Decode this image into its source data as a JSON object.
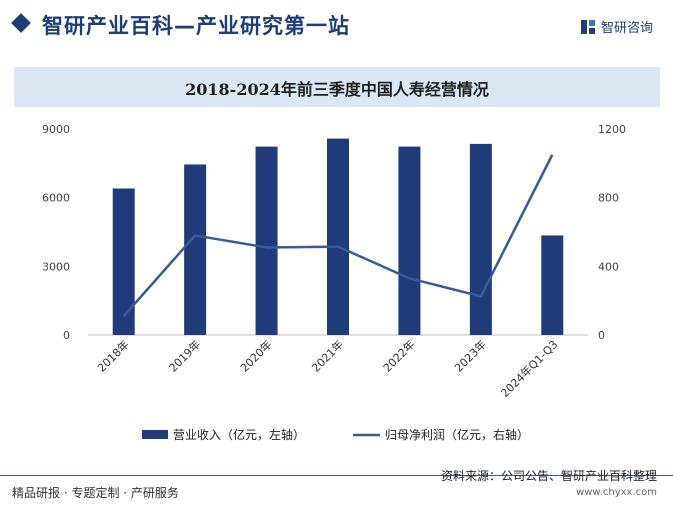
{
  "header": {
    "title": "智研产业百科—产业研究第一站",
    "logo_text": "智研咨询"
  },
  "footer": {
    "left": "精品研报 · 专题定制 · 产研服务",
    "source": "资料来源：公司公告、智研产业百科整理",
    "url": "www.chyxx.com"
  },
  "colors": {
    "bar": "#1f3b7a",
    "line": "#3a5a9c",
    "header": "#1f3b7a",
    "band": "#dde7f4"
  },
  "chart_data": {
    "type": "bar",
    "title": "2018-2024年前三季度中国人寿经营情况",
    "categories": [
      "2018年",
      "2019年",
      "2020年",
      "2021年",
      "2022年",
      "2023年",
      "2024年Q1-Q3"
    ],
    "series": [
      {
        "name": "营业收入（亿元，左轴）",
        "type": "bar",
        "axis": "left",
        "values": [
          6400,
          7450,
          8230,
          8580,
          8230,
          8350,
          4350
        ]
      },
      {
        "name": "归母净利润（亿元，右轴）",
        "type": "line",
        "axis": "right",
        "values": [
          110,
          580,
          510,
          515,
          330,
          225,
          1050
        ]
      }
    ],
    "y_left": {
      "min": 0,
      "max": 9000,
      "ticks": [
        0,
        3000,
        6000,
        9000
      ]
    },
    "y_right": {
      "min": 0,
      "max": 1200,
      "ticks": [
        0,
        400,
        800,
        1200
      ]
    },
    "legend_position": "bottom"
  }
}
